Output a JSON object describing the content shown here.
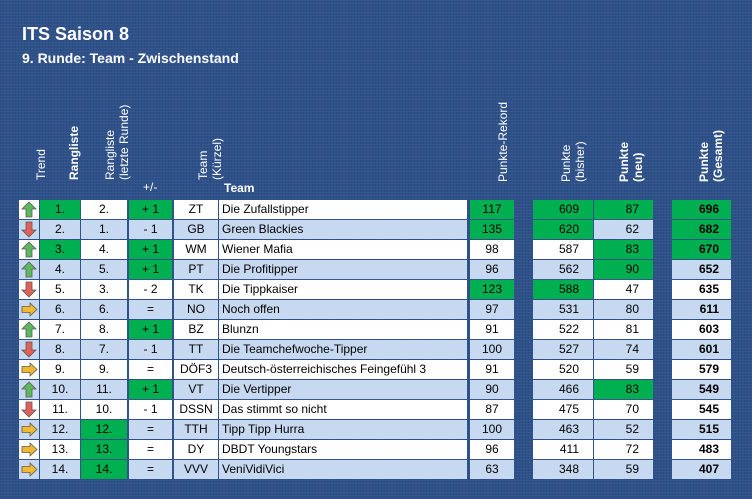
{
  "title": "ITS Saison 8",
  "subtitle": "9. Runde: Team - Zwischenstand",
  "headers": {
    "trend": "Trend",
    "rangliste": "Rangliste",
    "rangliste_last_1": "Rangliste",
    "rangliste_last_2": "(letzte Runde)",
    "plusminus": "+/-",
    "team_short_1": "Team",
    "team_short_2": "(Kürzel)",
    "team": "Team",
    "rekord": "Punkte-Rekord",
    "bisher_1": "Punkte",
    "bisher_2": "(bisher)",
    "neu_1": "Punkte",
    "neu_2": "(neu)",
    "gesamt_1": "Punkte",
    "gesamt_2": "(Gesamt)"
  },
  "colors": {
    "background": "#2e5189",
    "highlight_green": "#00b050",
    "row_alt": "#c6d9f0",
    "arrow_up": "#5cb85c",
    "arrow_down": "#e0605a",
    "arrow_side": "#f0b830"
  },
  "rows": [
    {
      "trend": "up",
      "rank": "1.",
      "last": "2.",
      "diff": "+ 1",
      "short": "ZT",
      "team": "Die Zufallstipper",
      "rekord": "117",
      "bisher": "609",
      "neu": "87",
      "gesamt": "696",
      "hl": [
        "rank",
        "diff",
        "rekord",
        "bisher",
        "neu",
        "gesamt"
      ]
    },
    {
      "trend": "down",
      "rank": "2.",
      "last": "1.",
      "diff": "- 1",
      "short": "GB",
      "team": "Green Blackies",
      "rekord": "135",
      "bisher": "620",
      "neu": "62",
      "gesamt": "682",
      "hl": [
        "rekord",
        "bisher",
        "gesamt"
      ]
    },
    {
      "trend": "up",
      "rank": "3.",
      "last": "4.",
      "diff": "+ 1",
      "short": "WM",
      "team": "Wiener Mafia",
      "rekord": "98",
      "bisher": "587",
      "neu": "83",
      "gesamt": "670",
      "hl": [
        "rank",
        "diff",
        "neu",
        "gesamt"
      ]
    },
    {
      "trend": "up",
      "rank": "4.",
      "last": "5.",
      "diff": "+ 1",
      "short": "PT",
      "team": "Die Profitipper",
      "rekord": "96",
      "bisher": "562",
      "neu": "90",
      "gesamt": "652",
      "hl": [
        "diff",
        "neu"
      ]
    },
    {
      "trend": "down",
      "rank": "5.",
      "last": "3.",
      "diff": "- 2",
      "short": "TK",
      "team": "Die Tippkaiser",
      "rekord": "123",
      "bisher": "588",
      "neu": "47",
      "gesamt": "635",
      "hl": [
        "rekord",
        "bisher"
      ]
    },
    {
      "trend": "side",
      "rank": "6.",
      "last": "6.",
      "diff": "=",
      "short": "NO",
      "team": "Noch offen",
      "rekord": "97",
      "bisher": "531",
      "neu": "80",
      "gesamt": "611",
      "hl": []
    },
    {
      "trend": "up",
      "rank": "7.",
      "last": "8.",
      "diff": "+ 1",
      "short": "BZ",
      "team": "Blunzn",
      "rekord": "91",
      "bisher": "522",
      "neu": "81",
      "gesamt": "603",
      "hl": [
        "diff"
      ]
    },
    {
      "trend": "down",
      "rank": "8.",
      "last": "7.",
      "diff": "- 1",
      "short": "TT",
      "team": "Die Teamchefwoche-Tipper",
      "rekord": "100",
      "bisher": "527",
      "neu": "74",
      "gesamt": "601",
      "hl": []
    },
    {
      "trend": "side",
      "rank": "9.",
      "last": "9.",
      "diff": "=",
      "short": "DÖF3",
      "team": "Deutsch-österreichisches Feingefühl 3",
      "rekord": "91",
      "bisher": "520",
      "neu": "59",
      "gesamt": "579",
      "hl": []
    },
    {
      "trend": "up",
      "rank": "10.",
      "last": "11.",
      "diff": "+ 1",
      "short": "VT",
      "team": "Die Vertipper",
      "rekord": "90",
      "bisher": "466",
      "neu": "83",
      "gesamt": "549",
      "hl": [
        "diff",
        "neu"
      ]
    },
    {
      "trend": "down",
      "rank": "11.",
      "last": "10.",
      "diff": "- 1",
      "short": "DSSN",
      "team": "Das stimmt so nicht",
      "rekord": "87",
      "bisher": "475",
      "neu": "70",
      "gesamt": "545",
      "hl": []
    },
    {
      "trend": "side",
      "rank": "12.",
      "last": "12.",
      "diff": "=",
      "short": "TTH",
      "team": "Tipp Tipp Hurra",
      "rekord": "100",
      "bisher": "463",
      "neu": "52",
      "gesamt": "515",
      "hl": [
        "last"
      ]
    },
    {
      "trend": "side",
      "rank": "13.",
      "last": "13.",
      "diff": "=",
      "short": "DY",
      "team": "DBDT Youngstars",
      "rekord": "96",
      "bisher": "411",
      "neu": "72",
      "gesamt": "483",
      "hl": [
        "last"
      ]
    },
    {
      "trend": "side",
      "rank": "14.",
      "last": "14.",
      "diff": "=",
      "short": "VVV",
      "team": "VeniVidiVici",
      "rekord": "63",
      "bisher": "348",
      "neu": "59",
      "gesamt": "407",
      "hl": [
        "last"
      ]
    }
  ]
}
